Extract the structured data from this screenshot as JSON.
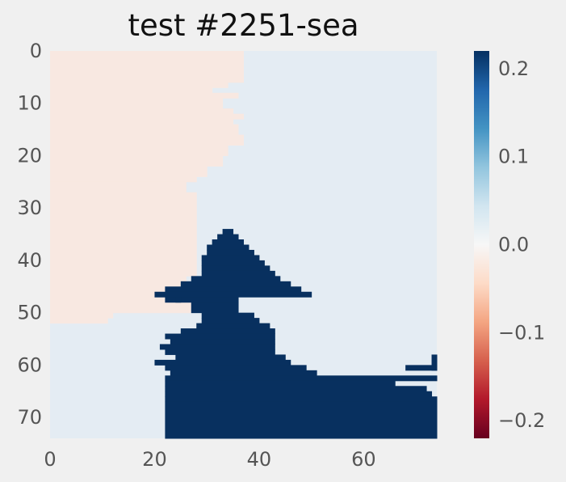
{
  "chart_data": {
    "type": "heatmap",
    "title": "test #2251-sea",
    "xlabel": "",
    "ylabel": "",
    "grid_size": [
      74,
      74
    ],
    "xlim": [
      0,
      74
    ],
    "ylim": [
      74,
      0
    ],
    "x_ticks": [
      0,
      20,
      40,
      60
    ],
    "y_ticks": [
      0,
      10,
      20,
      30,
      40,
      50,
      60,
      70
    ],
    "x_tick_labels": [
      "0",
      "20",
      "40",
      "60"
    ],
    "y_tick_labels": [
      "0",
      "10",
      "20",
      "30",
      "40",
      "50",
      "60",
      "70"
    ],
    "colormap": "RdBu",
    "colorbar": {
      "vmin": -0.22,
      "vmax": 0.22,
      "ticks": [
        0.2,
        0.1,
        0.0,
        -0.1,
        -0.2
      ],
      "tick_labels": [
        "0.2",
        "0.1",
        "0.0",
        "−0.1",
        "−0.2"
      ],
      "stops": [
        "#67001f",
        "#b2182b",
        "#d6604d",
        "#f4a582",
        "#fddbc7",
        "#f7f7f7",
        "#d1e5f0",
        "#92c5de",
        "#4393c3",
        "#2166ac",
        "#053061"
      ]
    },
    "region_values": {
      "background": 0.01,
      "west_region": -0.01,
      "high_region": 0.22
    },
    "colors": {
      "background": "#e4ecf3",
      "west_region": "#f8e8e1",
      "high_region": "#08305f"
    },
    "regions": {
      "west_region": {
        "x_edge_by_row": [
          [
            0,
            6,
            37
          ],
          [
            6,
            7,
            34
          ],
          [
            7,
            8,
            31
          ],
          [
            8,
            9,
            36
          ],
          [
            9,
            11,
            33
          ],
          [
            11,
            12,
            35
          ],
          [
            12,
            13,
            37
          ],
          [
            13,
            14,
            35
          ],
          [
            14,
            16,
            36
          ],
          [
            16,
            18,
            37
          ],
          [
            18,
            20,
            34
          ],
          [
            20,
            22,
            33
          ],
          [
            22,
            24,
            30
          ],
          [
            24,
            25,
            28
          ],
          [
            25,
            27,
            26
          ],
          [
            27,
            43,
            28
          ],
          [
            43,
            46,
            26
          ],
          [
            46,
            48,
            24
          ],
          [
            48,
            50,
            27
          ],
          [
            50,
            51,
            12
          ],
          [
            51,
            52,
            11
          ]
        ]
      },
      "high_region": {
        "row_spans": [
          [
            34,
            35,
            33,
            35
          ],
          [
            35,
            36,
            32,
            36
          ],
          [
            36,
            37,
            31,
            37
          ],
          [
            37,
            38,
            30,
            38
          ],
          [
            38,
            39,
            30,
            39
          ],
          [
            39,
            40,
            29,
            40
          ],
          [
            40,
            41,
            29,
            41
          ],
          [
            41,
            42,
            29,
            42
          ],
          [
            42,
            43,
            29,
            43
          ],
          [
            43,
            44,
            27,
            44
          ],
          [
            44,
            45,
            25,
            46
          ],
          [
            45,
            46,
            22,
            48
          ],
          [
            46,
            47,
            20,
            50
          ],
          [
            47,
            48,
            22,
            36
          ],
          [
            47,
            48,
            24,
            25
          ],
          [
            48,
            50,
            27,
            36
          ],
          [
            50,
            51,
            29,
            39
          ],
          [
            51,
            52,
            29,
            40
          ],
          [
            52,
            53,
            28,
            42
          ],
          [
            53,
            54,
            25,
            43
          ],
          [
            54,
            55,
            22,
            43
          ],
          [
            55,
            56,
            23,
            43
          ],
          [
            56,
            57,
            21,
            43
          ],
          [
            57,
            58,
            22,
            43
          ],
          [
            58,
            59,
            24,
            45
          ],
          [
            59,
            60,
            20,
            46
          ],
          [
            60,
            61,
            22,
            49
          ],
          [
            61,
            62,
            23,
            51
          ],
          [
            62,
            63,
            22,
            74
          ],
          [
            63,
            64,
            22,
            66
          ],
          [
            64,
            65,
            22,
            72
          ],
          [
            65,
            66,
            22,
            73
          ],
          [
            66,
            67,
            22,
            74
          ],
          [
            67,
            74,
            22,
            74
          ],
          [
            58,
            61,
            73,
            74
          ],
          [
            60,
            61,
            68,
            74
          ]
        ]
      }
    }
  }
}
